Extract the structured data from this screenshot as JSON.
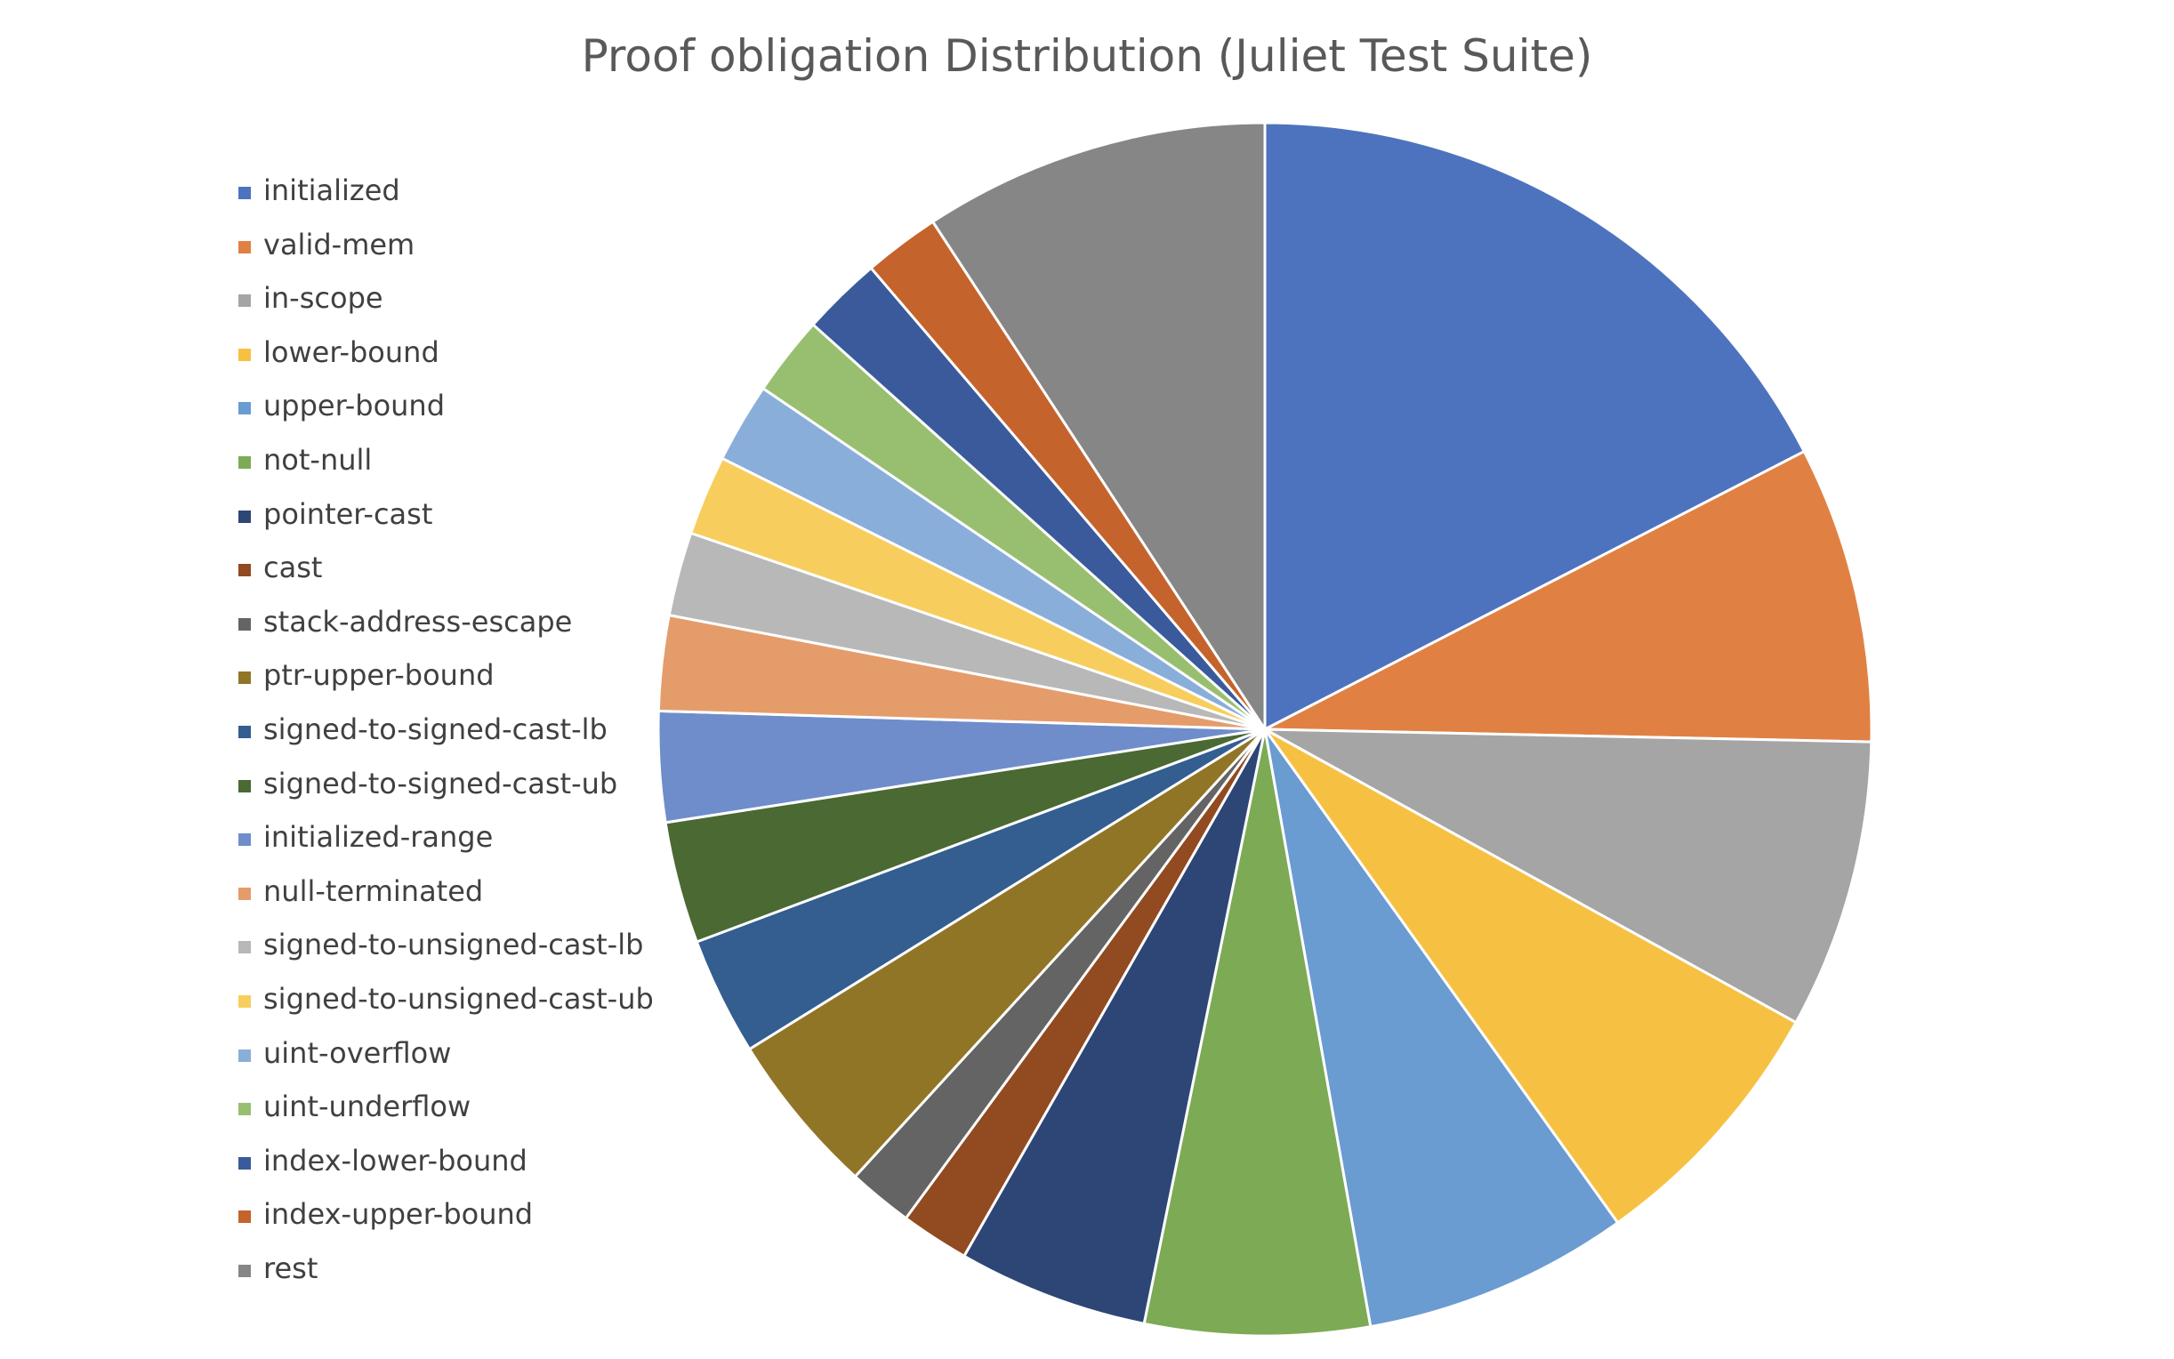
{
  "chart_data": {
    "type": "pie",
    "title": "Proof obligation Distribution (Juliet  Test Suite)",
    "legend_position": "left",
    "slices": [
      {
        "label": "initialized",
        "value": 17.2,
        "color": "#4E73BE"
      },
      {
        "label": "valid-mem",
        "value": 7.8,
        "color": "#E08143"
      },
      {
        "label": "in-scope",
        "value": 7.6,
        "color": "#A5A5A5"
      },
      {
        "label": "lower-bound",
        "value": 7.0,
        "color": "#F6C143"
      },
      {
        "label": "upper-bound",
        "value": 7.0,
        "color": "#6A9BD1"
      },
      {
        "label": "not-null",
        "value": 5.9,
        "color": "#7DAA55"
      },
      {
        "label": "pointer-cast",
        "value": 5.0,
        "color": "#2D4675"
      },
      {
        "label": "cast",
        "value": 1.8,
        "color": "#924A21"
      },
      {
        "label": "stack-address-escape",
        "value": 1.7,
        "color": "#646464"
      },
      {
        "label": "ptr-upper-bound",
        "value": 4.3,
        "color": "#917527"
      },
      {
        "label": "signed-to-signed-cast-lb",
        "value": 3.1,
        "color": "#335E8F"
      },
      {
        "label": "signed-to-signed-cast-ub",
        "value": 3.2,
        "color": "#4A6933"
      },
      {
        "label": "initialized-range",
        "value": 2.9,
        "color": "#6F8DCB"
      },
      {
        "label": "null-terminated",
        "value": 2.5,
        "color": "#E59C6B"
      },
      {
        "label": "signed-to-unsigned-cast-lb",
        "value": 2.2,
        "color": "#B8B8B8"
      },
      {
        "label": "signed-to-unsigned-cast-ub",
        "value": 2.1,
        "color": "#F7CE5D"
      },
      {
        "label": "uint-overflow",
        "value": 2.1,
        "color": "#8AAEDA"
      },
      {
        "label": "uint-underflow",
        "value": 2.1,
        "color": "#98BF6F"
      },
      {
        "label": "index-lower-bound",
        "value": 2.1,
        "color": "#3A5A9C"
      },
      {
        "label": "index-upper-bound",
        "value": 2.0,
        "color": "#C5632C"
      },
      {
        "label": "rest",
        "value": 9.1,
        "color": "#868686"
      }
    ]
  }
}
